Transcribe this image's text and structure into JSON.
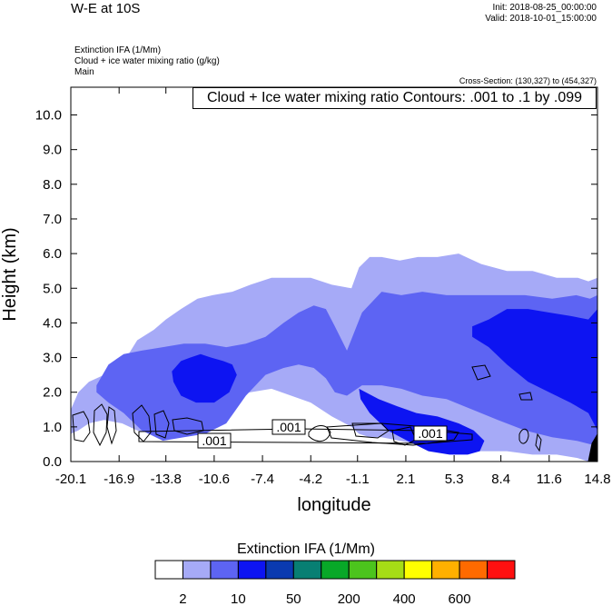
{
  "header": {
    "title": "W-E at 10S",
    "init": "Init: 2018-08-25_00:00:00",
    "valid": "Valid: 2018-10-01_15:00:00",
    "variables": [
      "Extinction IFA   (1/Mm)",
      "Cloud + ice water mixing ratio   (g/kg)",
      "Main"
    ],
    "cross_section": "Cross-Section: (130,327) to (454,327)",
    "contour_label": "Cloud + Ice water mixing ratio Contours: .001 to .1 by .099"
  },
  "contour_labels": [
    ".001",
    ".001",
    ".001"
  ],
  "colors": {
    "fill_levels": [
      "#ffffff",
      "#a6aaf7",
      "#5d64f3",
      "#0d14f2",
      "#0a3ab0",
      "#087f73",
      "#08a828",
      "#4cc41d",
      "#a6dc16",
      "#ffff00",
      "#ffb000",
      "#ff6a00",
      "#ff1010"
    ]
  },
  "colorbar": {
    "title": "Extinction IFA  (1/Mm)",
    "labels": [
      "2",
      "10",
      "50",
      "200",
      "400",
      "600"
    ]
  },
  "chart_data": {
    "type": "area",
    "title": "",
    "xlabel": "longitude",
    "ylabel": "Height (km)",
    "xlim": [
      -20.1,
      14.8
    ],
    "ylim": [
      0.0,
      10.8
    ],
    "xticks": [
      "-20.1",
      "-16.9",
      "-13.8",
      "-10.6",
      "-7.4",
      "-4.2",
      "-1.1",
      "2.1",
      "5.3",
      "8.4",
      "11.6",
      "14.8"
    ],
    "yticks": [
      "0.0",
      "1.0",
      "2.0",
      "3.0",
      "4.0",
      "5.0",
      "6.0",
      "7.0",
      "8.0",
      "9.0",
      "10.0"
    ],
    "grid": false,
    "levels": [
      2,
      10,
      50
    ],
    "layers": [
      {
        "level": 2,
        "x": [
          -20.1,
          -19.6,
          -18.9,
          -17.9,
          -16.7,
          -15.7,
          -14.6,
          -13.8,
          -12.8,
          -11.7,
          -10.7,
          -9.4,
          -8.2,
          -6.8,
          -5.5,
          -4.2,
          -2.8,
          -1.5,
          -1.0,
          -0.3,
          0.5,
          1.7,
          2.9,
          4.2,
          5.6,
          7.1,
          8.8,
          10.5,
          12.1,
          13.5,
          14.2,
          14.8
        ],
        "top": [
          1.5,
          2.0,
          2.3,
          2.5,
          2.8,
          3.5,
          3.8,
          4.1,
          4.4,
          4.7,
          4.8,
          4.9,
          5.1,
          5.3,
          5.3,
          5.3,
          5.1,
          5.0,
          5.6,
          5.9,
          5.9,
          5.8,
          5.9,
          5.9,
          6.0,
          5.7,
          5.5,
          5.5,
          5.3,
          5.3,
          5.2,
          5.3
        ],
        "bottom": [
          0.8,
          0.9,
          1.1,
          1.2,
          1.1,
          0.9,
          0.8,
          0.8,
          0.8,
          0.8,
          1.4,
          1.9,
          2.0,
          2.1,
          1.9,
          1.7,
          1.3,
          1.0,
          0.8,
          0.7,
          0.7,
          0.6,
          0.5,
          0.4,
          0.3,
          0.3,
          0.3,
          0.2,
          0.2,
          0.1,
          0.0,
          0.0
        ]
      },
      {
        "level": 10,
        "x": [
          -18.4,
          -17.6,
          -16.6,
          -15.4,
          -14.0,
          -12.6,
          -11.2,
          -9.8,
          -8.5,
          -7.2,
          -6.0,
          -5.0,
          -4.0,
          -3.2,
          -2.6,
          -1.8,
          -0.8,
          0.5,
          1.8,
          3.2,
          4.8,
          6.5,
          8.2,
          10.0,
          11.8,
          13.4,
          14.3,
          14.8
        ],
        "top": [
          2.2,
          2.8,
          3.1,
          3.2,
          3.3,
          3.4,
          3.4,
          3.3,
          3.4,
          3.6,
          4.0,
          4.3,
          4.5,
          4.4,
          3.9,
          3.2,
          4.3,
          4.9,
          4.8,
          4.9,
          4.8,
          4.8,
          4.8,
          4.8,
          4.7,
          4.8,
          4.7,
          4.8
        ],
        "bottom": [
          2.0,
          1.7,
          1.4,
          0.9,
          0.6,
          0.7,
          0.8,
          1.1,
          1.9,
          2.5,
          2.7,
          2.8,
          2.7,
          2.4,
          2.0,
          1.9,
          2.2,
          2.2,
          2.1,
          1.9,
          1.8,
          1.5,
          1.2,
          0.9,
          0.7,
          0.6,
          0.5,
          0.5
        ]
      },
      {
        "level": 50,
        "x": [
          -13.4,
          -12.8,
          -12.2,
          -11.5,
          -10.8,
          -10.0,
          -9.4,
          -9.1,
          -9.6,
          -10.6,
          -11.8,
          -12.8,
          -13.3
        ],
        "top": [
          2.6,
          2.9,
          3.0,
          3.1,
          3.0,
          2.9,
          2.8,
          2.5,
          2.0,
          1.7,
          1.7,
          1.9,
          2.3
        ],
        "bottom": []
      },
      {
        "level": 50,
        "x": [
          6.5,
          7.6,
          8.8,
          10.2,
          11.6,
          13.0,
          14.2,
          14.8
        ],
        "top": [
          3.9,
          4.1,
          4.4,
          4.4,
          4.3,
          4.2,
          4.1,
          4.4
        ],
        "bottom": [
          3.6,
          3.3,
          2.8,
          2.3,
          2.0,
          1.7,
          1.4,
          0.9
        ]
      },
      {
        "level": 50,
        "x": [
          -1.0,
          0.3,
          1.5,
          2.8,
          4.2,
          5.6,
          6.6,
          7.3,
          7.0,
          6.2,
          5.0,
          3.6,
          2.2,
          0.9,
          -0.3,
          -0.9
        ],
        "top": [
          2.1,
          1.8,
          1.6,
          1.4,
          1.3,
          1.1,
          0.9,
          0.6,
          0.3,
          0.2,
          0.2,
          0.3,
          0.6,
          0.9,
          1.4,
          1.8
        ],
        "bottom": []
      }
    ]
  }
}
